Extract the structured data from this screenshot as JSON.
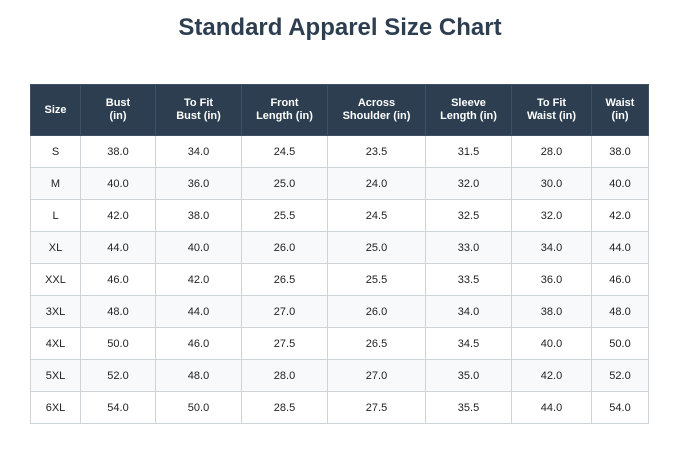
{
  "header": {
    "title": "Standard Apparel Size Chart"
  },
  "table": {
    "columns": [
      [
        "Size"
      ],
      [
        "Bust",
        "(in)"
      ],
      [
        "To Fit",
        "Bust (in)"
      ],
      [
        "Front",
        "Length (in)"
      ],
      [
        "Across",
        "Shoulder (in)"
      ],
      [
        "Sleeve",
        "Length (in)"
      ],
      [
        "To Fit",
        "Waist (in)"
      ],
      [
        "Waist",
        "(in)"
      ]
    ],
    "rows": [
      [
        "S",
        "38.0",
        "34.0",
        "24.5",
        "23.5",
        "31.5",
        "28.0",
        "38.0"
      ],
      [
        "M",
        "40.0",
        "36.0",
        "25.0",
        "24.0",
        "32.0",
        "30.0",
        "40.0"
      ],
      [
        "L",
        "42.0",
        "38.0",
        "25.5",
        "24.5",
        "32.5",
        "32.0",
        "42.0"
      ],
      [
        "XL",
        "44.0",
        "40.0",
        "26.0",
        "25.0",
        "33.0",
        "34.0",
        "44.0"
      ],
      [
        "XXL",
        "46.0",
        "42.0",
        "26.5",
        "25.5",
        "33.5",
        "36.0",
        "46.0"
      ],
      [
        "3XL",
        "48.0",
        "44.0",
        "27.0",
        "26.0",
        "34.0",
        "38.0",
        "48.0"
      ],
      [
        "4XL",
        "50.0",
        "46.0",
        "27.5",
        "26.5",
        "34.5",
        "40.0",
        "50.0"
      ],
      [
        "5XL",
        "52.0",
        "48.0",
        "28.0",
        "27.0",
        "35.0",
        "42.0",
        "52.0"
      ],
      [
        "6XL",
        "54.0",
        "50.0",
        "28.5",
        "27.5",
        "35.5",
        "44.0",
        "54.0"
      ]
    ]
  }
}
